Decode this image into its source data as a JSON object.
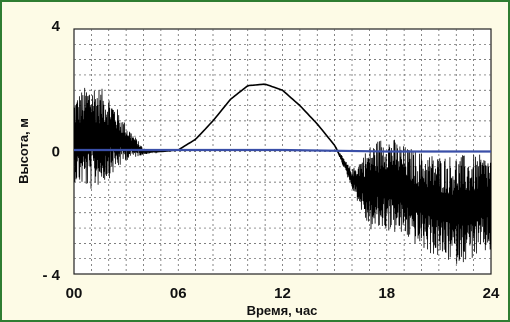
{
  "chart_data": {
    "type": "line",
    "title": "",
    "xlabel": "Время, час",
    "ylabel": "Высота, м",
    "xlim": [
      0,
      24
    ],
    "ylim": [
      -4,
      4
    ],
    "x_ticks": [
      0,
      6,
      12,
      18,
      24
    ],
    "x_tick_labels": [
      "00",
      "06",
      "12",
      "18",
      "24"
    ],
    "y_ticks": [
      4,
      0,
      -4
    ],
    "y_tick_labels": [
      "4",
      "0",
      "- 4"
    ],
    "grid": true,
    "legend": "none",
    "series": [
      {
        "color": "#000000",
        "x": [
          0,
          1,
          2,
          3,
          4,
          5,
          6,
          7,
          8,
          9,
          10,
          11,
          12,
          13,
          14,
          15,
          16,
          17,
          18,
          19,
          20,
          21,
          22,
          23,
          24
        ],
        "y": [
          0.4,
          0.5,
          0.5,
          0.3,
          0.0,
          0.0,
          0.05,
          0.4,
          1.0,
          1.7,
          2.15,
          2.2,
          2.0,
          1.5,
          0.9,
          0.2,
          -0.9,
          -1.2,
          -1.0,
          -1.3,
          -1.6,
          -1.8,
          -1.9,
          -1.8,
          -1.7
        ],
        "noise_amplitude": [
          1.4,
          1.8,
          1.4,
          0.6,
          0.1,
          0.0,
          0.0,
          0.0,
          0.0,
          0.0,
          0.0,
          0.0,
          0.0,
          0.0,
          0.0,
          0.0,
          0.3,
          1.4,
          1.6,
          1.5,
          1.6,
          1.7,
          1.8,
          1.7,
          1.6
        ]
      },
      {
        "color": "#3a4fa8",
        "x": [
          0,
          6,
          12,
          18,
          24
        ],
        "y": [
          0.05,
          0.05,
          0.05,
          0.0,
          0.0
        ]
      }
    ]
  }
}
